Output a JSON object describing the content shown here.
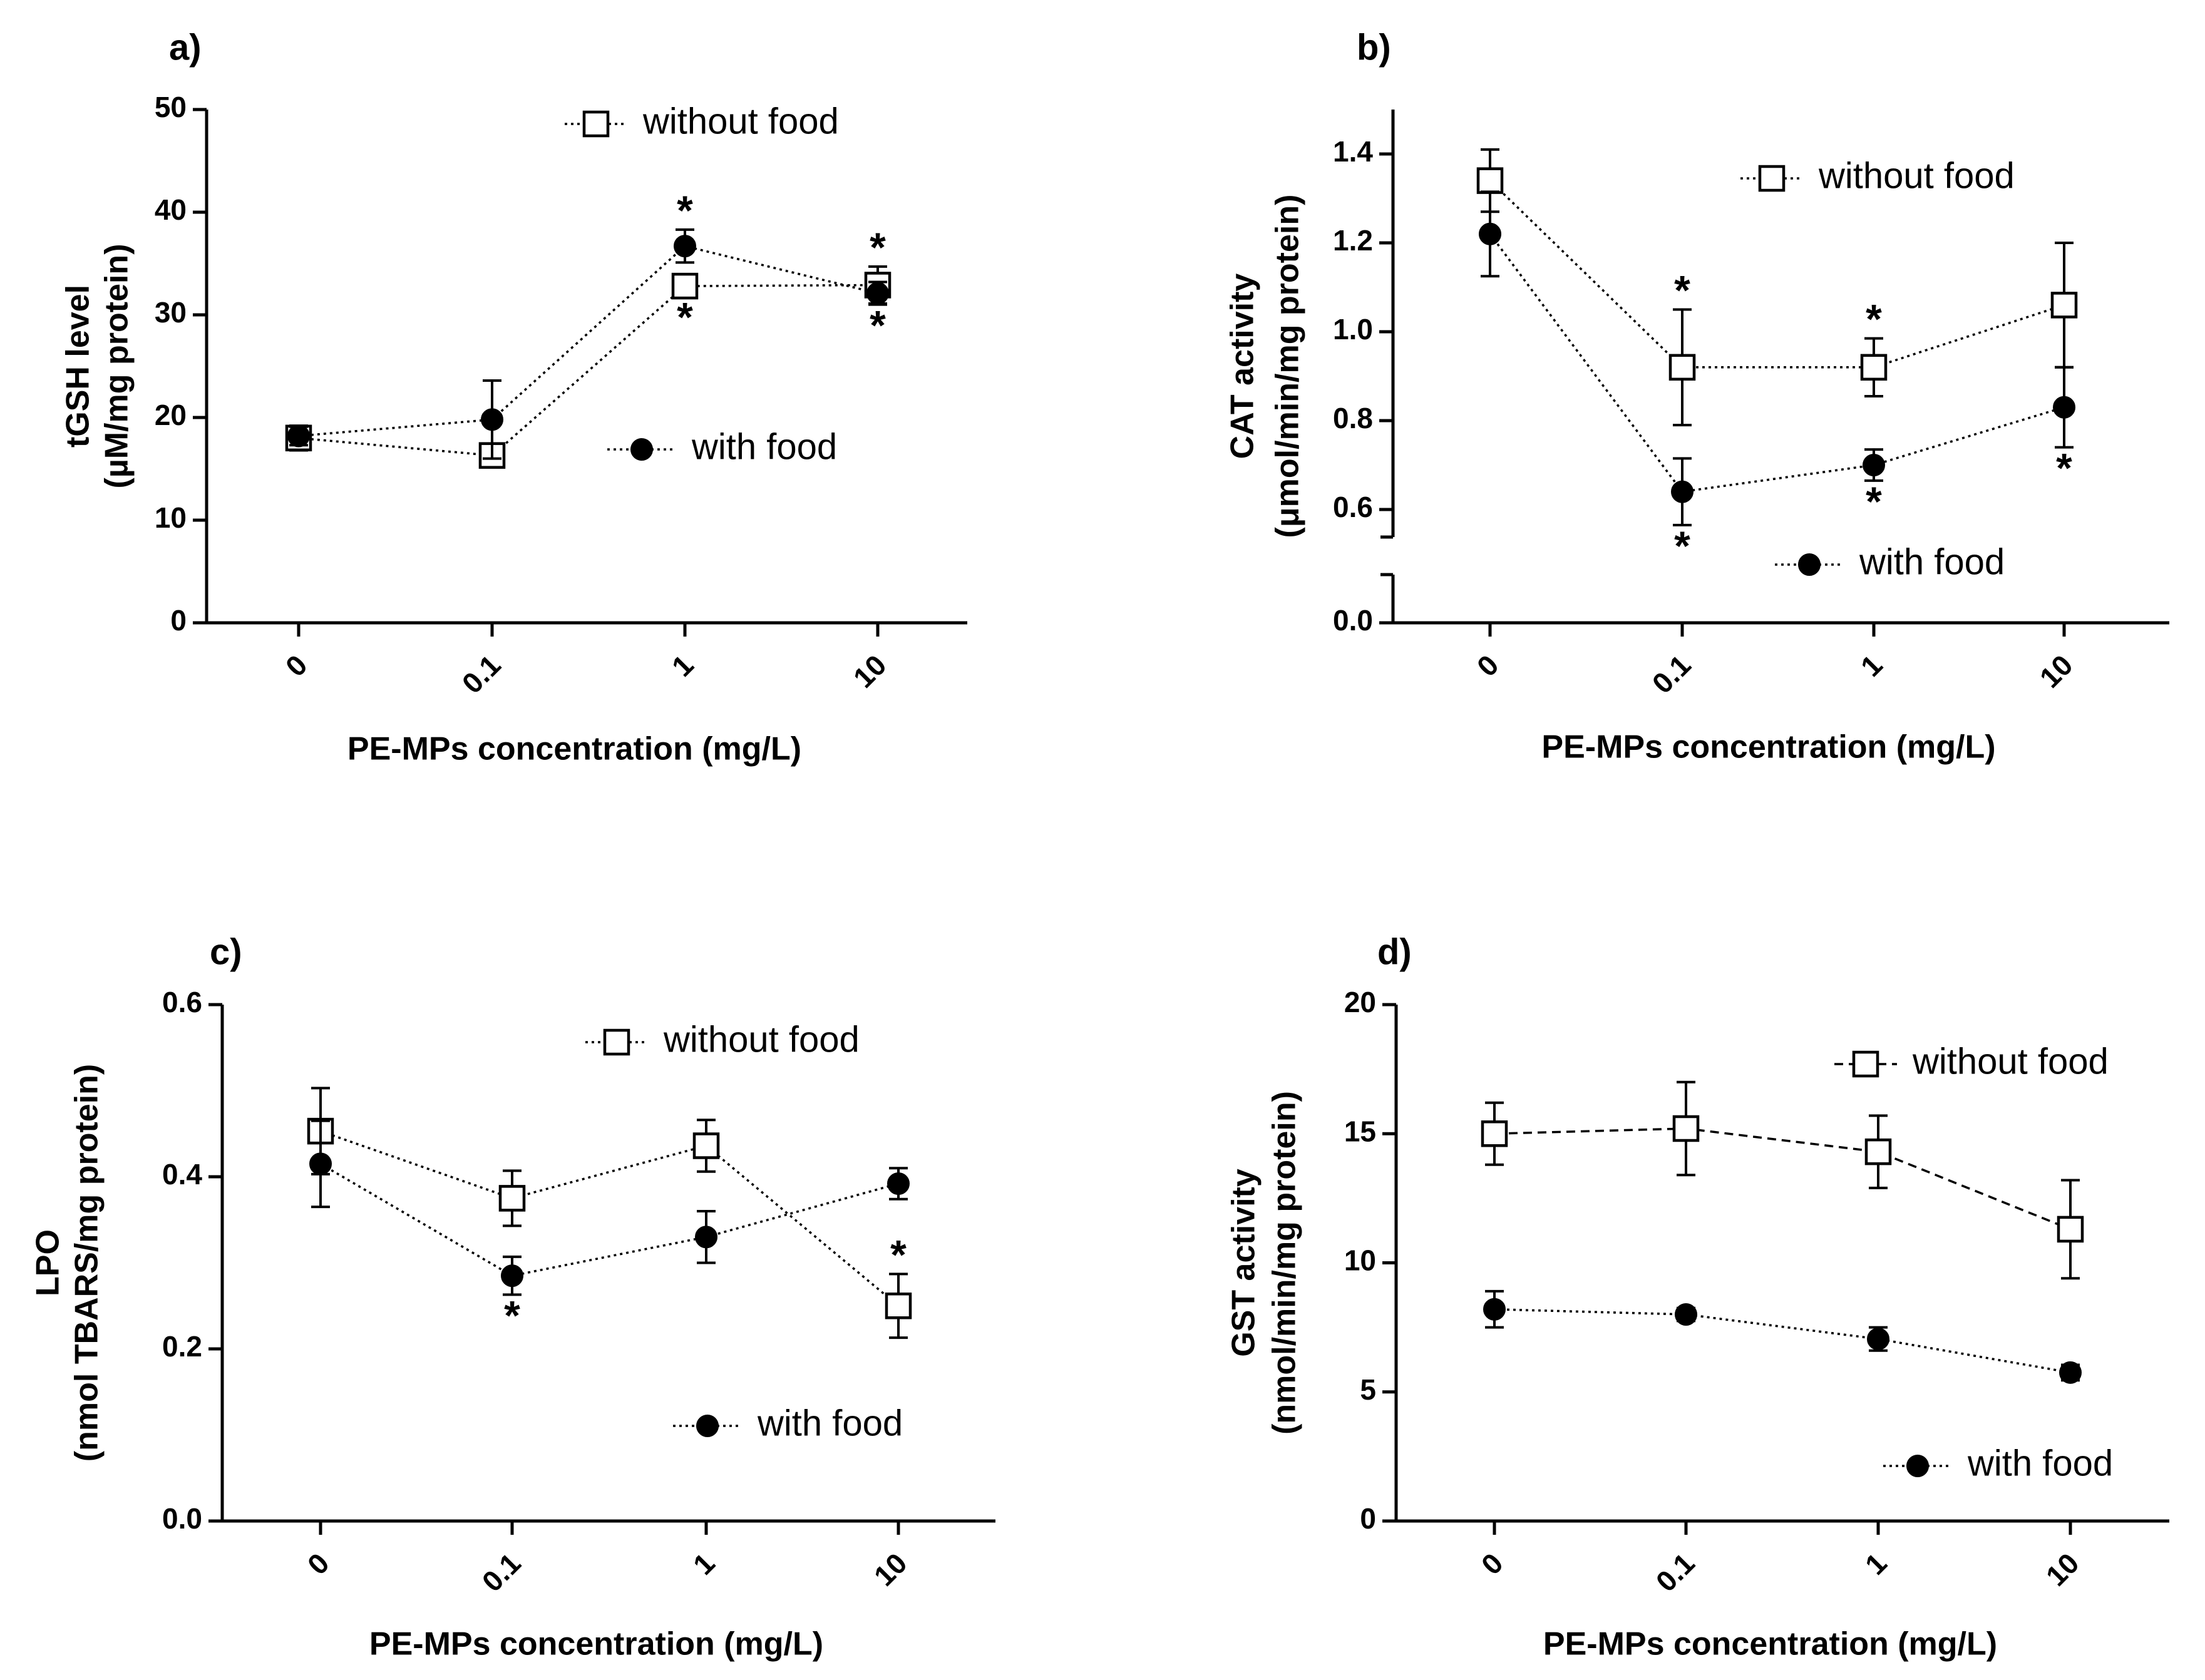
{
  "figure": {
    "background": "#ffffff",
    "ink": "#000000"
  },
  "chart_data": [
    {
      "panel": "a)",
      "type": "line",
      "categories": [
        "0",
        "0.1",
        "1",
        "10"
      ],
      "xlabel": "PE-MPs concentration (mg/L)",
      "ylabel": [
        "tGSH level",
        "(µM/mg protein)"
      ],
      "ylim": [
        0,
        50
      ],
      "yticks": [
        0,
        10,
        20,
        30,
        40,
        50
      ],
      "ytick_labels": [
        "0",
        "10",
        "20",
        "30",
        "40",
        "50"
      ],
      "legend": {
        "without_food": "without food",
        "with_food": "with food"
      },
      "series": [
        {
          "name": "without food",
          "marker": "open-square",
          "line": "dotted",
          "values": [
            18.0,
            16.3,
            32.8,
            32.9
          ],
          "errors": [
            1.2,
            0.9,
            1.0,
            1.8
          ],
          "sig": [
            false,
            false,
            true,
            true
          ],
          "sig_pos": [
            "",
            "",
            "below",
            "above"
          ]
        },
        {
          "name": "with food",
          "marker": "filled-circle",
          "line": "dotted",
          "values": [
            18.2,
            19.8,
            36.7,
            32.1
          ],
          "errors": [
            0.9,
            3.8,
            1.6,
            1.1
          ],
          "sig": [
            false,
            false,
            true,
            true
          ],
          "sig_pos": [
            "",
            "",
            "above",
            "below"
          ]
        }
      ]
    },
    {
      "panel": "b)",
      "type": "line",
      "categories": [
        "0",
        "0.1",
        "1",
        "10"
      ],
      "xlabel": "PE-MPs concentration (mg/L)",
      "ylabel": [
        "CAT activity",
        "(μmol/min/mg protein)"
      ],
      "ylim": [
        0,
        1.5
      ],
      "axis_break": [
        0.05,
        0.5
      ],
      "yticks": [
        0.0,
        0.6,
        0.8,
        1.0,
        1.2,
        1.4
      ],
      "ytick_labels": [
        "0.0",
        "0.6",
        "0.8",
        "1.0",
        "1.2",
        "1.4"
      ],
      "legend": {
        "without_food": "without food",
        "with_food": "with food"
      },
      "series": [
        {
          "name": "without food",
          "marker": "open-square",
          "line": "dotted",
          "values": [
            1.34,
            0.92,
            0.92,
            1.06
          ],
          "errors": [
            0.07,
            0.13,
            0.065,
            0.14
          ],
          "sig": [
            false,
            true,
            true,
            false
          ],
          "sig_pos": [
            "",
            "above",
            "above",
            ""
          ]
        },
        {
          "name": "with food",
          "marker": "filled-circle",
          "line": "dotted",
          "values": [
            1.22,
            0.64,
            0.7,
            0.83
          ],
          "errors": [
            0.095,
            0.075,
            0.035,
            0.09
          ],
          "sig": [
            false,
            true,
            true,
            true
          ],
          "sig_pos": [
            "",
            "below",
            "below",
            "below"
          ]
        }
      ]
    },
    {
      "panel": "c)",
      "type": "line",
      "categories": [
        "0",
        "0.1",
        "1",
        "10"
      ],
      "xlabel": "PE-MPs concentration (mg/L)",
      "ylabel": [
        "LPO",
        "(nmol TBARS/mg protein)"
      ],
      "ylim": [
        0,
        0.6
      ],
      "yticks": [
        0.0,
        0.2,
        0.4,
        0.6
      ],
      "ytick_labels": [
        "0.0",
        "0.2",
        "0.4",
        "0.6"
      ],
      "legend": {
        "without_food": "without food",
        "with_food": "with food"
      },
      "series": [
        {
          "name": "without food",
          "marker": "open-square",
          "line": "dotted",
          "values": [
            0.453,
            0.375,
            0.436,
            0.25
          ],
          "errors": [
            0.05,
            0.032,
            0.03,
            0.037
          ],
          "sig": [
            false,
            false,
            false,
            true
          ],
          "sig_pos": [
            "",
            "",
            "",
            "above"
          ]
        },
        {
          "name": "with food",
          "marker": "filled-circle",
          "line": "dotted",
          "values": [
            0.415,
            0.285,
            0.33,
            0.392
          ],
          "errors": [
            0.05,
            0.022,
            0.03,
            0.018
          ],
          "sig": [
            false,
            true,
            false,
            false
          ],
          "sig_pos": [
            "",
            "below",
            "",
            ""
          ]
        }
      ]
    },
    {
      "panel": "d)",
      "type": "line",
      "categories": [
        "0",
        "0.1",
        "1",
        "10"
      ],
      "xlabel": "PE-MPs concentration (mg/L)",
      "ylabel": [
        "GST activity",
        "(nmol/min/mg protein)"
      ],
      "ylim": [
        0,
        20
      ],
      "yticks": [
        0,
        5,
        10,
        15,
        20
      ],
      "ytick_labels": [
        "0",
        "5",
        "10",
        "15",
        "20"
      ],
      "legend": {
        "without_food": "without food",
        "with_food": "with food"
      },
      "series": [
        {
          "name": "without food",
          "marker": "open-square",
          "line": "dashed",
          "values": [
            15.0,
            15.2,
            14.3,
            11.3
          ],
          "errors": [
            1.2,
            1.8,
            1.4,
            1.9
          ],
          "sig": [
            false,
            false,
            false,
            false
          ],
          "sig_pos": [
            "",
            "",
            "",
            ""
          ]
        },
        {
          "name": "with food",
          "marker": "filled-circle",
          "line": "dotted",
          "values": [
            8.2,
            8.0,
            7.05,
            5.75
          ],
          "errors": [
            0.7,
            0.25,
            0.45,
            0.3
          ],
          "sig": [
            false,
            false,
            false,
            false
          ],
          "sig_pos": [
            "",
            "",
            "",
            ""
          ]
        }
      ]
    }
  ]
}
